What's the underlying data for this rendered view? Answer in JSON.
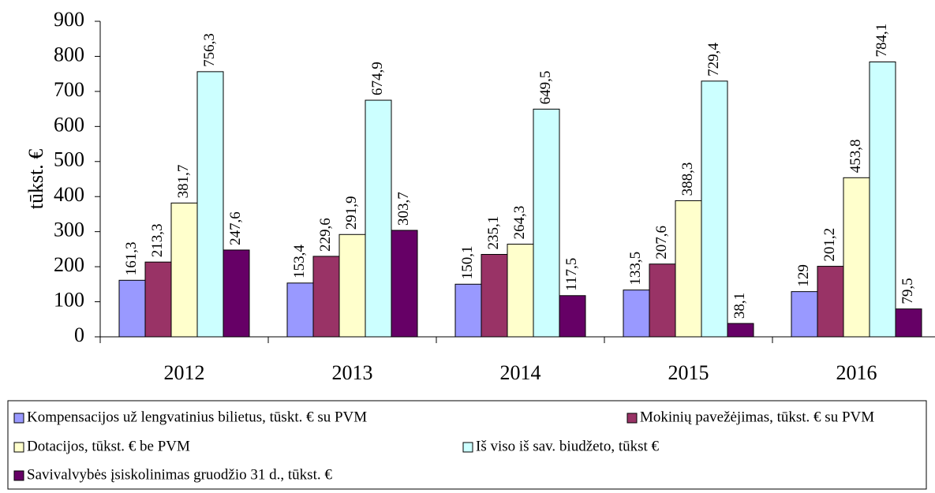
{
  "chart_data": {
    "type": "bar",
    "y_label": "tūkst. €",
    "categories": [
      "2012",
      "2013",
      "2014",
      "2015",
      "2016"
    ],
    "series": [
      {
        "name": "Kompensacijos už lengvatinius bilietus, tūskt. € su PVM",
        "color": "#9999ff",
        "values": [
          161.3,
          153.4,
          150.1,
          133.5,
          129
        ],
        "value_labels": [
          "161,3",
          "153,4",
          "150,1",
          "133,5",
          "129"
        ]
      },
      {
        "name": "Mokinių pavežėjimas, tūkst. € su PVM",
        "color": "#993366",
        "values": [
          213.3,
          229.6,
          235.1,
          207.6,
          201.2
        ],
        "value_labels": [
          "213,3",
          "229,6",
          "235,1",
          "207,6",
          "201,2"
        ]
      },
      {
        "name": "Dotacijos, tūkst. € be PVM",
        "color": "#ffffcc",
        "values": [
          381.7,
          291.9,
          264.3,
          388.3,
          453.8
        ],
        "value_labels": [
          "381,7",
          "291,9",
          "264,3",
          "388,3",
          "453,8"
        ]
      },
      {
        "name": "Iš viso iš sav. biudžeto, tūkst €",
        "color": "#ccffff",
        "values": [
          756.3,
          674.9,
          649.5,
          729.4,
          784.1
        ],
        "value_labels": [
          "756,3",
          "674,9",
          "649,5",
          "729,4",
          "784,1"
        ]
      },
      {
        "name": "Savivalvybės įsiskolinimas gruodžio 31 d., tūkst. €",
        "color": "#660066",
        "values": [
          247.6,
          303.7,
          117.5,
          38.1,
          79.5
        ],
        "value_labels": [
          "247,6",
          "303,7",
          "117,5",
          "38,1",
          "79,5"
        ]
      }
    ],
    "ylim": [
      0,
      900
    ],
    "yticks": [
      0,
      100,
      200,
      300,
      400,
      500,
      600,
      700,
      800,
      900
    ],
    "legend": "bottom"
  }
}
